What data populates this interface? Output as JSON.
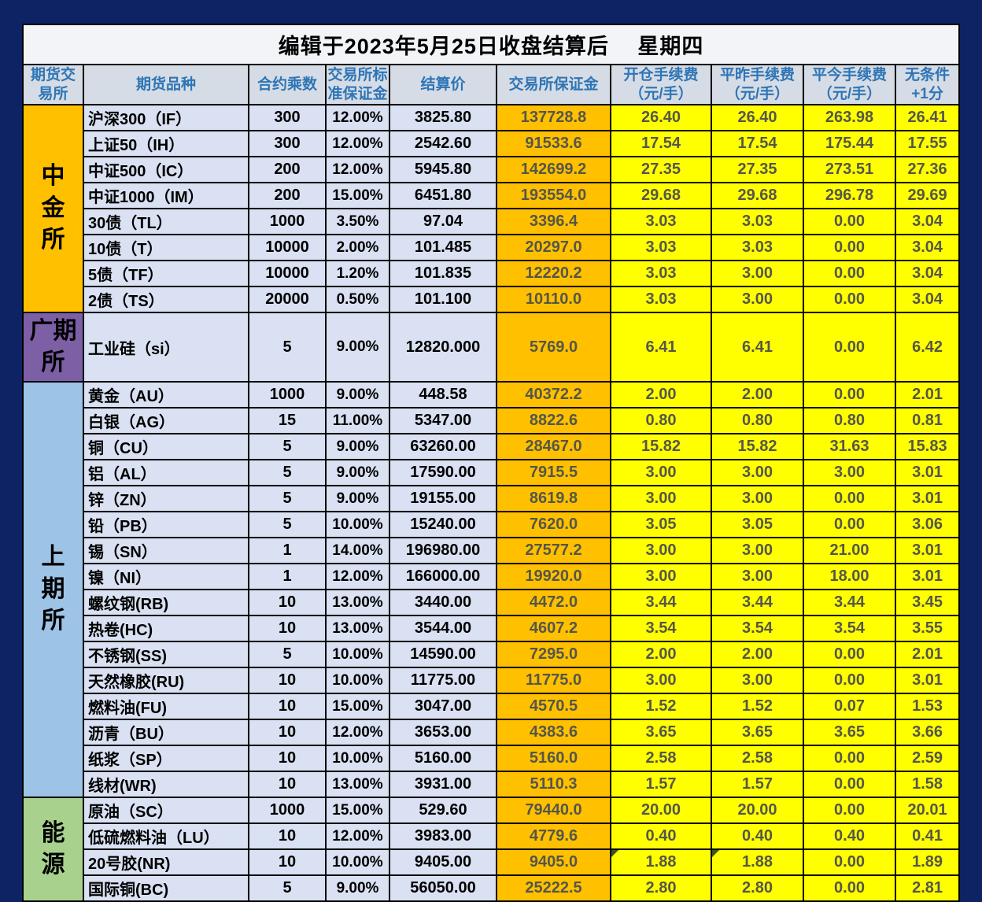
{
  "title": "编辑于2023年5月25日收盘结算后　 星期四",
  "columns": [
    {
      "key": "exchange",
      "label": "期货交易所",
      "lines": [
        "期货交",
        "易所"
      ]
    },
    {
      "key": "name",
      "label": "期货品种",
      "lines": [
        "期货品种"
      ]
    },
    {
      "key": "multiplier",
      "label": "合约乘数",
      "lines": [
        "合约乘数"
      ]
    },
    {
      "key": "margin_rate",
      "label": "交易所标准保证金",
      "lines": [
        "交易所标",
        "准保证金"
      ]
    },
    {
      "key": "settle",
      "label": "结算价",
      "lines": [
        "结算价"
      ]
    },
    {
      "key": "margin",
      "label": "交易所保证金",
      "lines": [
        "交易所保证金"
      ]
    },
    {
      "key": "open_fee",
      "label": "开仓手续费（元/手）",
      "lines": [
        "开仓手续费",
        "（元/手）"
      ]
    },
    {
      "key": "close_yd",
      "label": "平昨手续费（元/手）",
      "lines": [
        "平昨手续费",
        "（元/手）"
      ]
    },
    {
      "key": "close_td",
      "label": "平今手续费（元/手）",
      "lines": [
        "平今手续费",
        "（元/手）"
      ]
    },
    {
      "key": "plus1",
      "label": "无条件+1分",
      "lines": [
        "无条件",
        "+1分"
      ]
    }
  ],
  "colors": {
    "frame_navy": "#0D2363",
    "title_bg": "#F2F4F7",
    "header_bg": "#D6DCE5",
    "header_text": "#2E75B6",
    "product_bg": "#D9E1F2",
    "margin_col_bg": "#FFC000",
    "fee_col_bg": "#FFFF00",
    "fee_text": "#55564A",
    "cffex_bg": "#FFC000",
    "gfex_bg": "#7D5FA6",
    "shfe_bg": "#9DC3E6",
    "ine_bg": "#A9D18E",
    "comment_marker": "#375623"
  },
  "groups": [
    {
      "exchange": "中金所",
      "label_lines": [
        "中",
        "金",
        "所"
      ],
      "bg": "#FFC000",
      "rows": [
        {
          "name": "沪深300（IF）",
          "multiplier": "300",
          "margin_rate": "12.00%",
          "settle": "3825.80",
          "margin": "137728.8",
          "open_fee": "26.40",
          "close_yd": "26.40",
          "close_td": "263.98",
          "plus1": "26.41"
        },
        {
          "name": "上证50（IH）",
          "multiplier": "300",
          "margin_rate": "12.00%",
          "settle": "2542.60",
          "margin": "91533.6",
          "open_fee": "17.54",
          "close_yd": "17.54",
          "close_td": "175.44",
          "plus1": "17.55"
        },
        {
          "name": "中证500（IC）",
          "multiplier": "200",
          "margin_rate": "12.00%",
          "settle": "5945.80",
          "margin": "142699.2",
          "open_fee": "27.35",
          "close_yd": "27.35",
          "close_td": "273.51",
          "plus1": "27.36"
        },
        {
          "name": "中证1000（IM）",
          "multiplier": "200",
          "margin_rate": "15.00%",
          "settle": "6451.80",
          "margin": "193554.0",
          "open_fee": "29.68",
          "close_yd": "29.68",
          "close_td": "296.78",
          "plus1": "29.69"
        },
        {
          "name": "30债（TL）",
          "multiplier": "1000",
          "margin_rate": "3.50%",
          "settle": "97.04",
          "margin": "3396.4",
          "open_fee": "3.03",
          "close_yd": "3.03",
          "close_td": "0.00",
          "plus1": "3.04"
        },
        {
          "name": "10债（T）",
          "multiplier": "10000",
          "margin_rate": "2.00%",
          "settle": "101.485",
          "margin": "20297.0",
          "open_fee": "3.03",
          "close_yd": "3.03",
          "close_td": "0.00",
          "plus1": "3.04"
        },
        {
          "name": "5债（TF）",
          "multiplier": "10000",
          "margin_rate": "1.20%",
          "settle": "101.835",
          "margin": "12220.2",
          "open_fee": "3.03",
          "close_yd": "3.00",
          "close_td": "0.00",
          "plus1": "3.04"
        },
        {
          "name": "2债（TS）",
          "multiplier": "20000",
          "margin_rate": "0.50%",
          "settle": "101.100",
          "margin": "10110.0",
          "open_fee": "3.03",
          "close_yd": "3.00",
          "close_td": "0.00",
          "plus1": "3.04"
        }
      ]
    },
    {
      "exchange": "广期所",
      "label_lines": [
        "广期",
        "所"
      ],
      "bg": "#7D5FA6",
      "tall": true,
      "rows": [
        {
          "name": "工业硅（si）",
          "multiplier": "5",
          "margin_rate": "9.00%",
          "settle": "12820.000",
          "margin": "5769.0",
          "open_fee": "6.41",
          "close_yd": "6.41",
          "close_td": "0.00",
          "plus1": "6.42"
        }
      ]
    },
    {
      "exchange": "上期所",
      "label_lines": [
        "上",
        "期",
        "所"
      ],
      "bg": "#9DC3E6",
      "rows": [
        {
          "name": "黄金（AU）",
          "multiplier": "1000",
          "margin_rate": "9.00%",
          "settle": "448.58",
          "margin": "40372.2",
          "open_fee": "2.00",
          "close_yd": "2.00",
          "close_td": "0.00",
          "plus1": "2.01"
        },
        {
          "name": "白银（AG）",
          "multiplier": "15",
          "margin_rate": "11.00%",
          "settle": "5347.00",
          "margin": "8822.6",
          "open_fee": "0.80",
          "close_yd": "0.80",
          "close_td": "0.80",
          "plus1": "0.81"
        },
        {
          "name": "铜（CU）",
          "multiplier": "5",
          "margin_rate": "9.00%",
          "settle": "63260.00",
          "margin": "28467.0",
          "open_fee": "15.82",
          "close_yd": "15.82",
          "close_td": "31.63",
          "plus1": "15.83"
        },
        {
          "name": "铝（AL）",
          "multiplier": "5",
          "margin_rate": "9.00%",
          "settle": "17590.00",
          "margin": "7915.5",
          "open_fee": "3.00",
          "close_yd": "3.00",
          "close_td": "3.00",
          "plus1": "3.01"
        },
        {
          "name": "锌（ZN）",
          "multiplier": "5",
          "margin_rate": "9.00%",
          "settle": "19155.00",
          "margin": "8619.8",
          "open_fee": "3.00",
          "close_yd": "3.00",
          "close_td": "0.00",
          "plus1": "3.01"
        },
        {
          "name": "铅（PB）",
          "multiplier": "5",
          "margin_rate": "10.00%",
          "settle": "15240.00",
          "margin": "7620.0",
          "open_fee": "3.05",
          "close_yd": "3.05",
          "close_td": "0.00",
          "plus1": "3.06"
        },
        {
          "name": "锡（SN）",
          "multiplier": "1",
          "margin_rate": "14.00%",
          "settle": "196980.00",
          "margin": "27577.2",
          "open_fee": "3.00",
          "close_yd": "3.00",
          "close_td": "21.00",
          "plus1": "3.01"
        },
        {
          "name": "镍（NI）",
          "multiplier": "1",
          "margin_rate": "12.00%",
          "settle": "166000.00",
          "margin": "19920.0",
          "open_fee": "3.00",
          "close_yd": "3.00",
          "close_td": "18.00",
          "plus1": "3.01"
        },
        {
          "name": "螺纹钢(RB)",
          "multiplier": "10",
          "margin_rate": "13.00%",
          "settle": "3440.00",
          "margin": "4472.0",
          "open_fee": "3.44",
          "close_yd": "3.44",
          "close_td": "3.44",
          "plus1": "3.45"
        },
        {
          "name": "热卷(HC)",
          "multiplier": "10",
          "margin_rate": "13.00%",
          "settle": "3544.00",
          "margin": "4607.2",
          "open_fee": "3.54",
          "close_yd": "3.54",
          "close_td": "3.54",
          "plus1": "3.55"
        },
        {
          "name": "不锈钢(SS)",
          "multiplier": "5",
          "margin_rate": "10.00%",
          "settle": "14590.00",
          "margin": "7295.0",
          "open_fee": "2.00",
          "close_yd": "2.00",
          "close_td": "0.00",
          "plus1": "2.01"
        },
        {
          "name": "天然橡胶(RU)",
          "multiplier": "10",
          "margin_rate": "10.00%",
          "settle": "11775.00",
          "margin": "11775.0",
          "open_fee": "3.00",
          "close_yd": "3.00",
          "close_td": "0.00",
          "plus1": "3.01"
        },
        {
          "name": "燃料油(FU)",
          "multiplier": "10",
          "margin_rate": "15.00%",
          "settle": "3047.00",
          "margin": "4570.5",
          "open_fee": "1.52",
          "close_yd": "1.52",
          "close_td": "0.07",
          "plus1": "1.53"
        },
        {
          "name": "沥青（BU）",
          "multiplier": "10",
          "margin_rate": "12.00%",
          "settle": "3653.00",
          "margin": "4383.6",
          "open_fee": "3.65",
          "close_yd": "3.65",
          "close_td": "3.65",
          "plus1": "3.66"
        },
        {
          "name": "纸浆（SP）",
          "multiplier": "10",
          "margin_rate": "10.00%",
          "settle": "5160.00",
          "margin": "5160.0",
          "open_fee": "2.58",
          "close_yd": "2.58",
          "close_td": "0.00",
          "plus1": "2.59"
        },
        {
          "name": "线材(WR)",
          "multiplier": "10",
          "margin_rate": "13.00%",
          "settle": "3931.00",
          "margin": "5110.3",
          "open_fee": "1.57",
          "close_yd": "1.57",
          "close_td": "0.00",
          "plus1": "1.58"
        }
      ]
    },
    {
      "exchange": "能源",
      "label_lines": [
        "能",
        "源"
      ],
      "bg": "#A9D18E",
      "rows": [
        {
          "name": "原油（SC）",
          "multiplier": "1000",
          "margin_rate": "15.00%",
          "settle": "529.60",
          "margin": "79440.0",
          "open_fee": "20.00",
          "close_yd": "20.00",
          "close_td": "0.00",
          "plus1": "20.01"
        },
        {
          "name": "低硫燃料油（LU）",
          "multiplier": "10",
          "margin_rate": "12.00%",
          "settle": "3983.00",
          "margin": "4779.6",
          "open_fee": "0.40",
          "close_yd": "0.40",
          "close_td": "0.40",
          "plus1": "0.41"
        },
        {
          "name": "20号胶(NR)",
          "multiplier": "10",
          "margin_rate": "10.00%",
          "settle": "9405.00",
          "margin": "9405.0",
          "open_fee": "1.88",
          "close_yd": "1.88",
          "close_td": "0.00",
          "plus1": "1.89",
          "markers": [
            "open_fee",
            "close_yd"
          ]
        },
        {
          "name": "国际铜(BC)",
          "multiplier": "5",
          "margin_rate": "9.00%",
          "settle": "56050.00",
          "margin": "25222.5",
          "open_fee": "2.80",
          "close_yd": "2.80",
          "close_td": "0.00",
          "plus1": "2.81"
        }
      ]
    }
  ]
}
